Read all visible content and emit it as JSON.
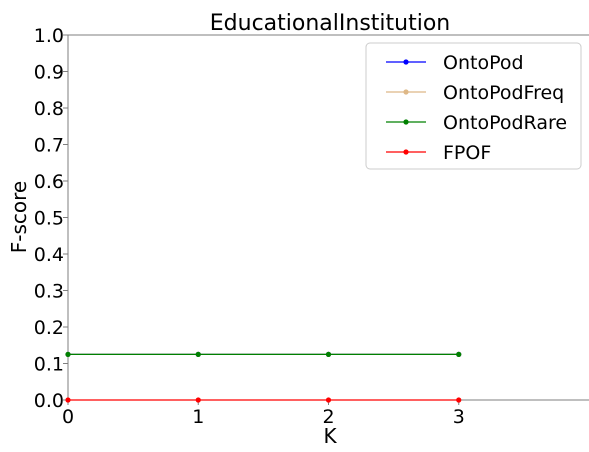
{
  "chart_data": {
    "type": "line",
    "title": "EducationalInstitution",
    "xlabel": "K",
    "ylabel": "F-score",
    "xlim": [
      0,
      4
    ],
    "ylim": [
      0,
      1
    ],
    "x_ticks": [
      0,
      1,
      2,
      3
    ],
    "y_ticks": [
      0.0,
      0.1,
      0.2,
      0.3,
      0.4,
      0.5,
      0.6,
      0.7,
      0.8,
      0.9,
      1.0
    ],
    "y_tick_labels": [
      "0.0",
      "0.1",
      "0.2",
      "0.3",
      "0.4",
      "0.5",
      "0.6",
      "0.7",
      "0.8",
      "0.9",
      "1.0"
    ],
    "x": [
      0,
      1,
      2,
      3
    ],
    "grid": false,
    "legend_position": "top-right",
    "series": [
      {
        "name": "OntoPod",
        "color": "#0000ff",
        "values": [
          0.125,
          0.125,
          0.125,
          0.125
        ]
      },
      {
        "name": "OntoPodFreq",
        "color": "#deb887",
        "values": [
          0.125,
          0.125,
          0.125,
          0.125
        ]
      },
      {
        "name": "OntoPodRare",
        "color": "#008000",
        "values": [
          0.125,
          0.125,
          0.125,
          0.125
        ]
      },
      {
        "name": "FPOF",
        "color": "#ff0000",
        "values": [
          0.0,
          0.0,
          0.0,
          0.0
        ]
      }
    ]
  }
}
